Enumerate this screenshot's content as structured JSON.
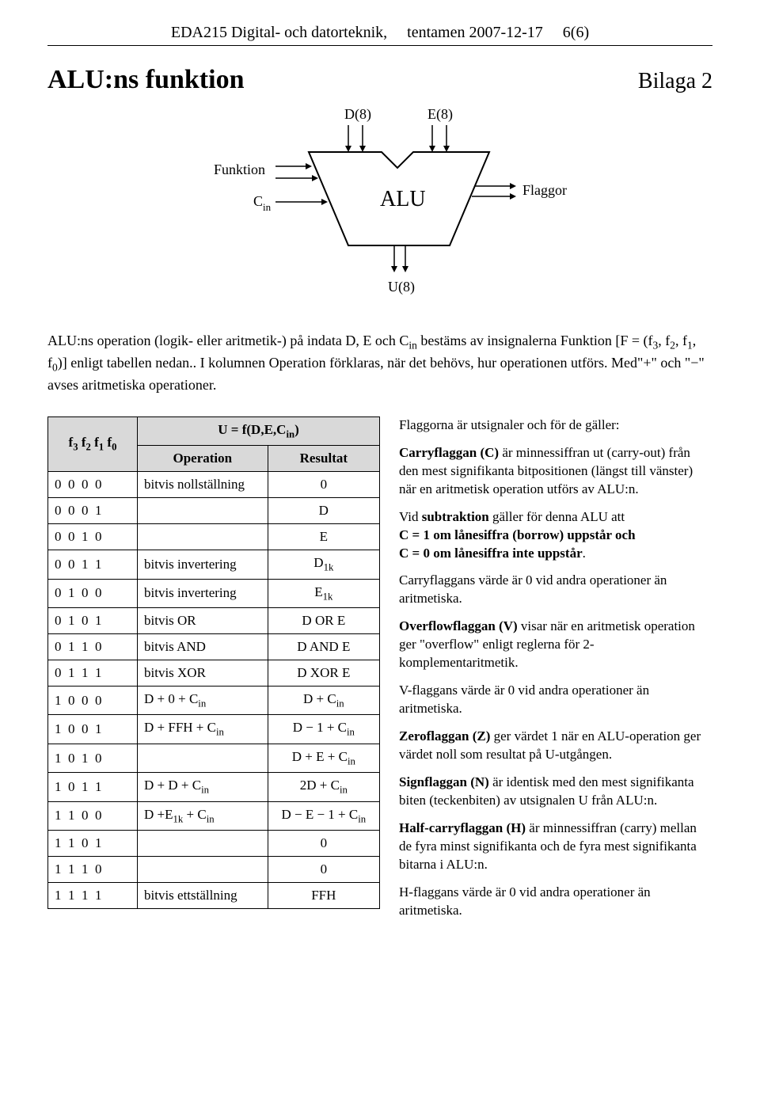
{
  "header": {
    "course": "EDA215 Digital- och datorteknik,",
    "exam": "tentamen 2007-12-17",
    "pageno": "6(6)"
  },
  "title": {
    "main": "ALU:ns funktion",
    "right": "Bilaga 2"
  },
  "diagram": {
    "D": "D(8)",
    "E": "E(8)",
    "Funktion": "Funktion",
    "Cin_label": "C",
    "Cin_sub": "in",
    "ALU": "ALU",
    "Flaggor": "Flaggor",
    "U": "U(8)"
  },
  "intro": {
    "line1_a": "ALU:ns operation (logik- eller aritmetik-) på indata D, E och C",
    "line1_sub": "in",
    "line1_b": " bestäms av insignalerna Funktion",
    "line2_a": "[F = (f",
    "line2_s3": "3",
    "line2_b": ", f",
    "line2_s2": "2",
    "line2_c": ", f",
    "line2_s1": "1",
    "line2_d": ", f",
    "line2_s0": "0",
    "line2_e": ")] enligt tabellen nedan.. I kolumnen Operation förklaras, när det behövs, hur operationen utförs. Med\"+\" och \"−\" avses aritmetiska operationer."
  },
  "table": {
    "head_f": "f3 f2 f1 f0",
    "head_u": "U = f(D,E,Cin)",
    "head_op": "Operation",
    "head_res": "Resultat",
    "rows": [
      {
        "f": "0  0  0  0",
        "op": "bitvis nollställning",
        "res": "0"
      },
      {
        "f": "0  0  0  1",
        "op": "",
        "res": "D"
      },
      {
        "f": "0  0  1  0",
        "op": "",
        "res": "E"
      },
      {
        "f": "0  0  1  1",
        "op": "bitvis invertering",
        "res": "D1k"
      },
      {
        "f": "0  1  0  0",
        "op": "bitvis invertering",
        "res": "E1k"
      },
      {
        "f": "0  1  0  1",
        "op": "bitvis OR",
        "res": "D OR E"
      },
      {
        "f": "0  1  1  0",
        "op": "bitvis AND",
        "res": "D AND E"
      },
      {
        "f": "0  1  1  1",
        "op": "bitvis XOR",
        "res": "D XOR E"
      },
      {
        "f": "1  0  0  0",
        "op": "D + 0 + Cin",
        "res": "D + Cin"
      },
      {
        "f": "1  0  0  1",
        "op": "D + FFH + Cin",
        "res": "D − 1 + Cin"
      },
      {
        "f": "1  0  1  0",
        "op": "",
        "res": "D + E + Cin"
      },
      {
        "f": "1  0  1  1",
        "op": "D + D + Cin",
        "res": "2D + Cin"
      },
      {
        "f": "1  1  0  0",
        "op": "D +E1k + Cin",
        "res": "D − E − 1 + Cin"
      },
      {
        "f": "1  1  0  1",
        "op": "",
        "res": "0"
      },
      {
        "f": "1  1  1  0",
        "op": "",
        "res": "0"
      },
      {
        "f": "1  1  1  1",
        "op": "bitvis ettställning",
        "res": "FFH"
      }
    ]
  },
  "flags": {
    "intro": "Flaggorna är utsignaler och för de gäller:",
    "C_title": "Carryflaggan (C)",
    "C_text": " är minnessiffran ut (carry-out) från den mest signifikanta bitpositionen (längst till vänster) när en aritmetisk operation utförs av ALU:n.",
    "sub_a": "Vid ",
    "sub_b": "subtraktion",
    "sub_c": " gäller för denna ALU att",
    "sub_d": "C = 1 om lånesiffra (borrow) uppstår och",
    "sub_e": "C = 0 om lånesiffra inte uppstår",
    "sub_f": ".",
    "C_after": "Carryflaggans värde är 0 vid andra operationer än aritmetiska.",
    "V_title": "Overflowflaggan (V)",
    "V_text": " visar när en aritmetisk operation ger \"overflow\" enligt reglerna för 2-komplementaritmetik.",
    "V_after": "V-flaggans värde är 0 vid andra operationer än aritmetiska.",
    "Z_title": "Zeroflaggan (Z)",
    "Z_text": " ger värdet 1 när en ALU-operation ger värdet noll som resultat på U-utgången.",
    "N_title": "Signflaggan (N)",
    "N_text": " är identisk med den mest signifikanta biten (teckenbiten) av utsignalen U från ALU:n.",
    "H_title": "Half-carryflaggan (H)",
    "H_text": " är minnessiffran (carry) mellan de fyra minst signifikanta och de fyra mest signifikanta bitarna i ALU:n.",
    "H_after": "H-flaggans värde är 0 vid andra operationer än aritmetiska."
  }
}
